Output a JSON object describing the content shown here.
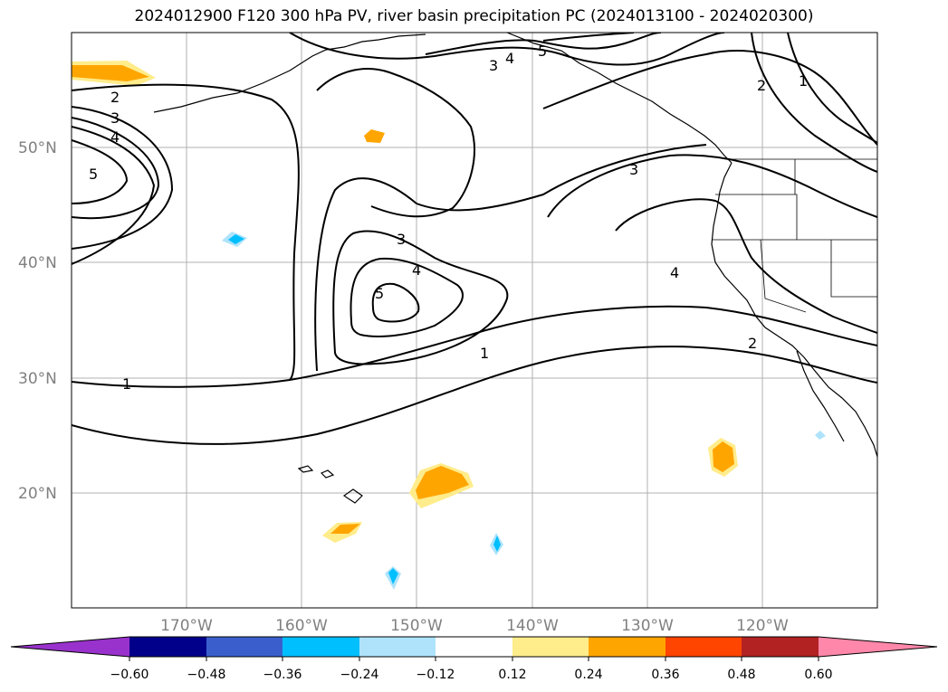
{
  "title": "2024012900 F120 300 hPa PV, river basin precipitation PC (2024013100 - 2024020300)",
  "map": {
    "lat_labels": [
      "50°N",
      "40°N",
      "30°N",
      "20°N"
    ],
    "lon_labels": [
      "170°W",
      "160°W",
      "150°W",
      "140°W",
      "130°W",
      "120°W"
    ],
    "contour_labels": [
      "1",
      "1",
      "2",
      "2",
      "3",
      "3",
      "3",
      "3",
      "4",
      "4",
      "4",
      "4",
      "5",
      "5",
      "5",
      "2",
      "1"
    ],
    "contour_color": "#000000",
    "grid_color": "#b0b0b0"
  },
  "colorbar": {
    "colors": [
      "#9932cc",
      "#00008b",
      "#3a5fcd",
      "#00bfff",
      "#aee3fb",
      "#ffffff",
      "#ffec8b",
      "#ffa500",
      "#ff4500",
      "#b22222",
      "#ff88aa",
      "#ff88aa"
    ],
    "tick_labels": [
      "−0.60",
      "−0.48",
      "−0.36",
      "−0.24",
      "−0.12",
      "0.12",
      "0.24",
      "0.36",
      "0.48",
      "0.60"
    ]
  }
}
